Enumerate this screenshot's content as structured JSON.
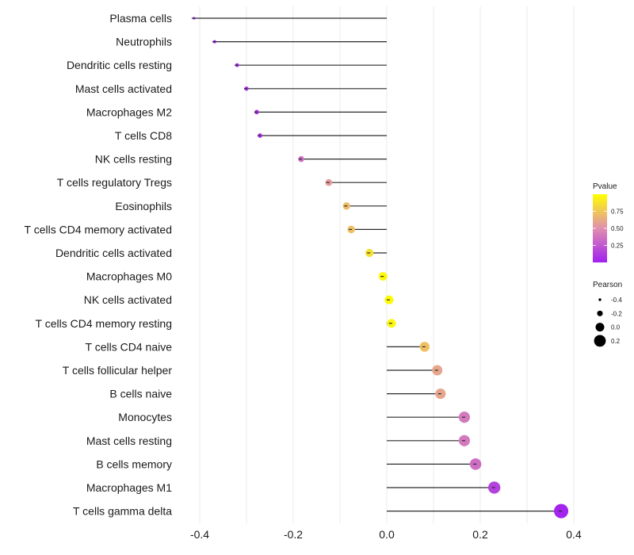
{
  "chart_data": {
    "type": "scatter",
    "subtype": "lollipop",
    "title": "",
    "xlabel": "",
    "ylabel": "",
    "xlim": [
      -0.43,
      0.42
    ],
    "x_ticks": [
      -0.4,
      -0.2,
      0.0,
      0.2,
      0.4
    ],
    "x_tick_labels": [
      "-0.4",
      "-0.2",
      "0.0",
      "0.2",
      "0.4"
    ],
    "grid": true,
    "baseline": 0.0,
    "categories": [
      "Plasma cells",
      "Neutrophils",
      "Dendritic cells resting",
      "Mast cells activated",
      "Macrophages M2",
      "T cells CD8",
      "NK cells resting",
      "T cells regulatory  Tregs",
      "Eosinophils",
      "T cells CD4 memory activated",
      "Dendritic cells activated",
      "Macrophages M0",
      "NK cells activated",
      "T cells CD4 memory resting",
      "T cells CD4 naive",
      "T cells follicular helper",
      "B cells naive",
      "Monocytes",
      "Mast cells resting",
      "B cells memory",
      "Macrophages M1",
      "T cells gamma delta"
    ],
    "series": [
      {
        "name": "Pearson",
        "values": [
          -0.412,
          -0.368,
          -0.32,
          -0.3,
          -0.278,
          -0.271,
          -0.183,
          -0.124,
          -0.086,
          -0.076,
          -0.037,
          -0.008,
          0.005,
          0.01,
          0.081,
          0.108,
          0.115,
          0.166,
          0.166,
          0.19,
          0.23,
          0.373
        ]
      },
      {
        "name": "Pvalue",
        "values": [
          0.01,
          0.02,
          0.04,
          0.06,
          0.08,
          0.08,
          0.35,
          0.56,
          0.7,
          0.72,
          0.86,
          0.97,
          0.98,
          0.96,
          0.72,
          0.6,
          0.6,
          0.4,
          0.4,
          0.35,
          0.15,
          0.02
        ]
      }
    ],
    "legends": [
      {
        "title": "Pvalue",
        "type": "colorbar",
        "range": [
          0,
          1
        ],
        "ticks": [
          0.25,
          0.5,
          0.75
        ],
        "tick_labels": [
          "0.25",
          "0.50",
          "0.75"
        ],
        "colors": [
          "#a020f0",
          "#e08fb0",
          "#ffff00"
        ],
        "placement": "right"
      },
      {
        "title": "Pearson",
        "type": "size",
        "values": [
          -0.4,
          -0.2,
          0.0,
          0.2
        ],
        "labels": [
          "-0.4",
          "-0.2",
          "0.0",
          "0.2"
        ],
        "placement": "right"
      }
    ]
  }
}
